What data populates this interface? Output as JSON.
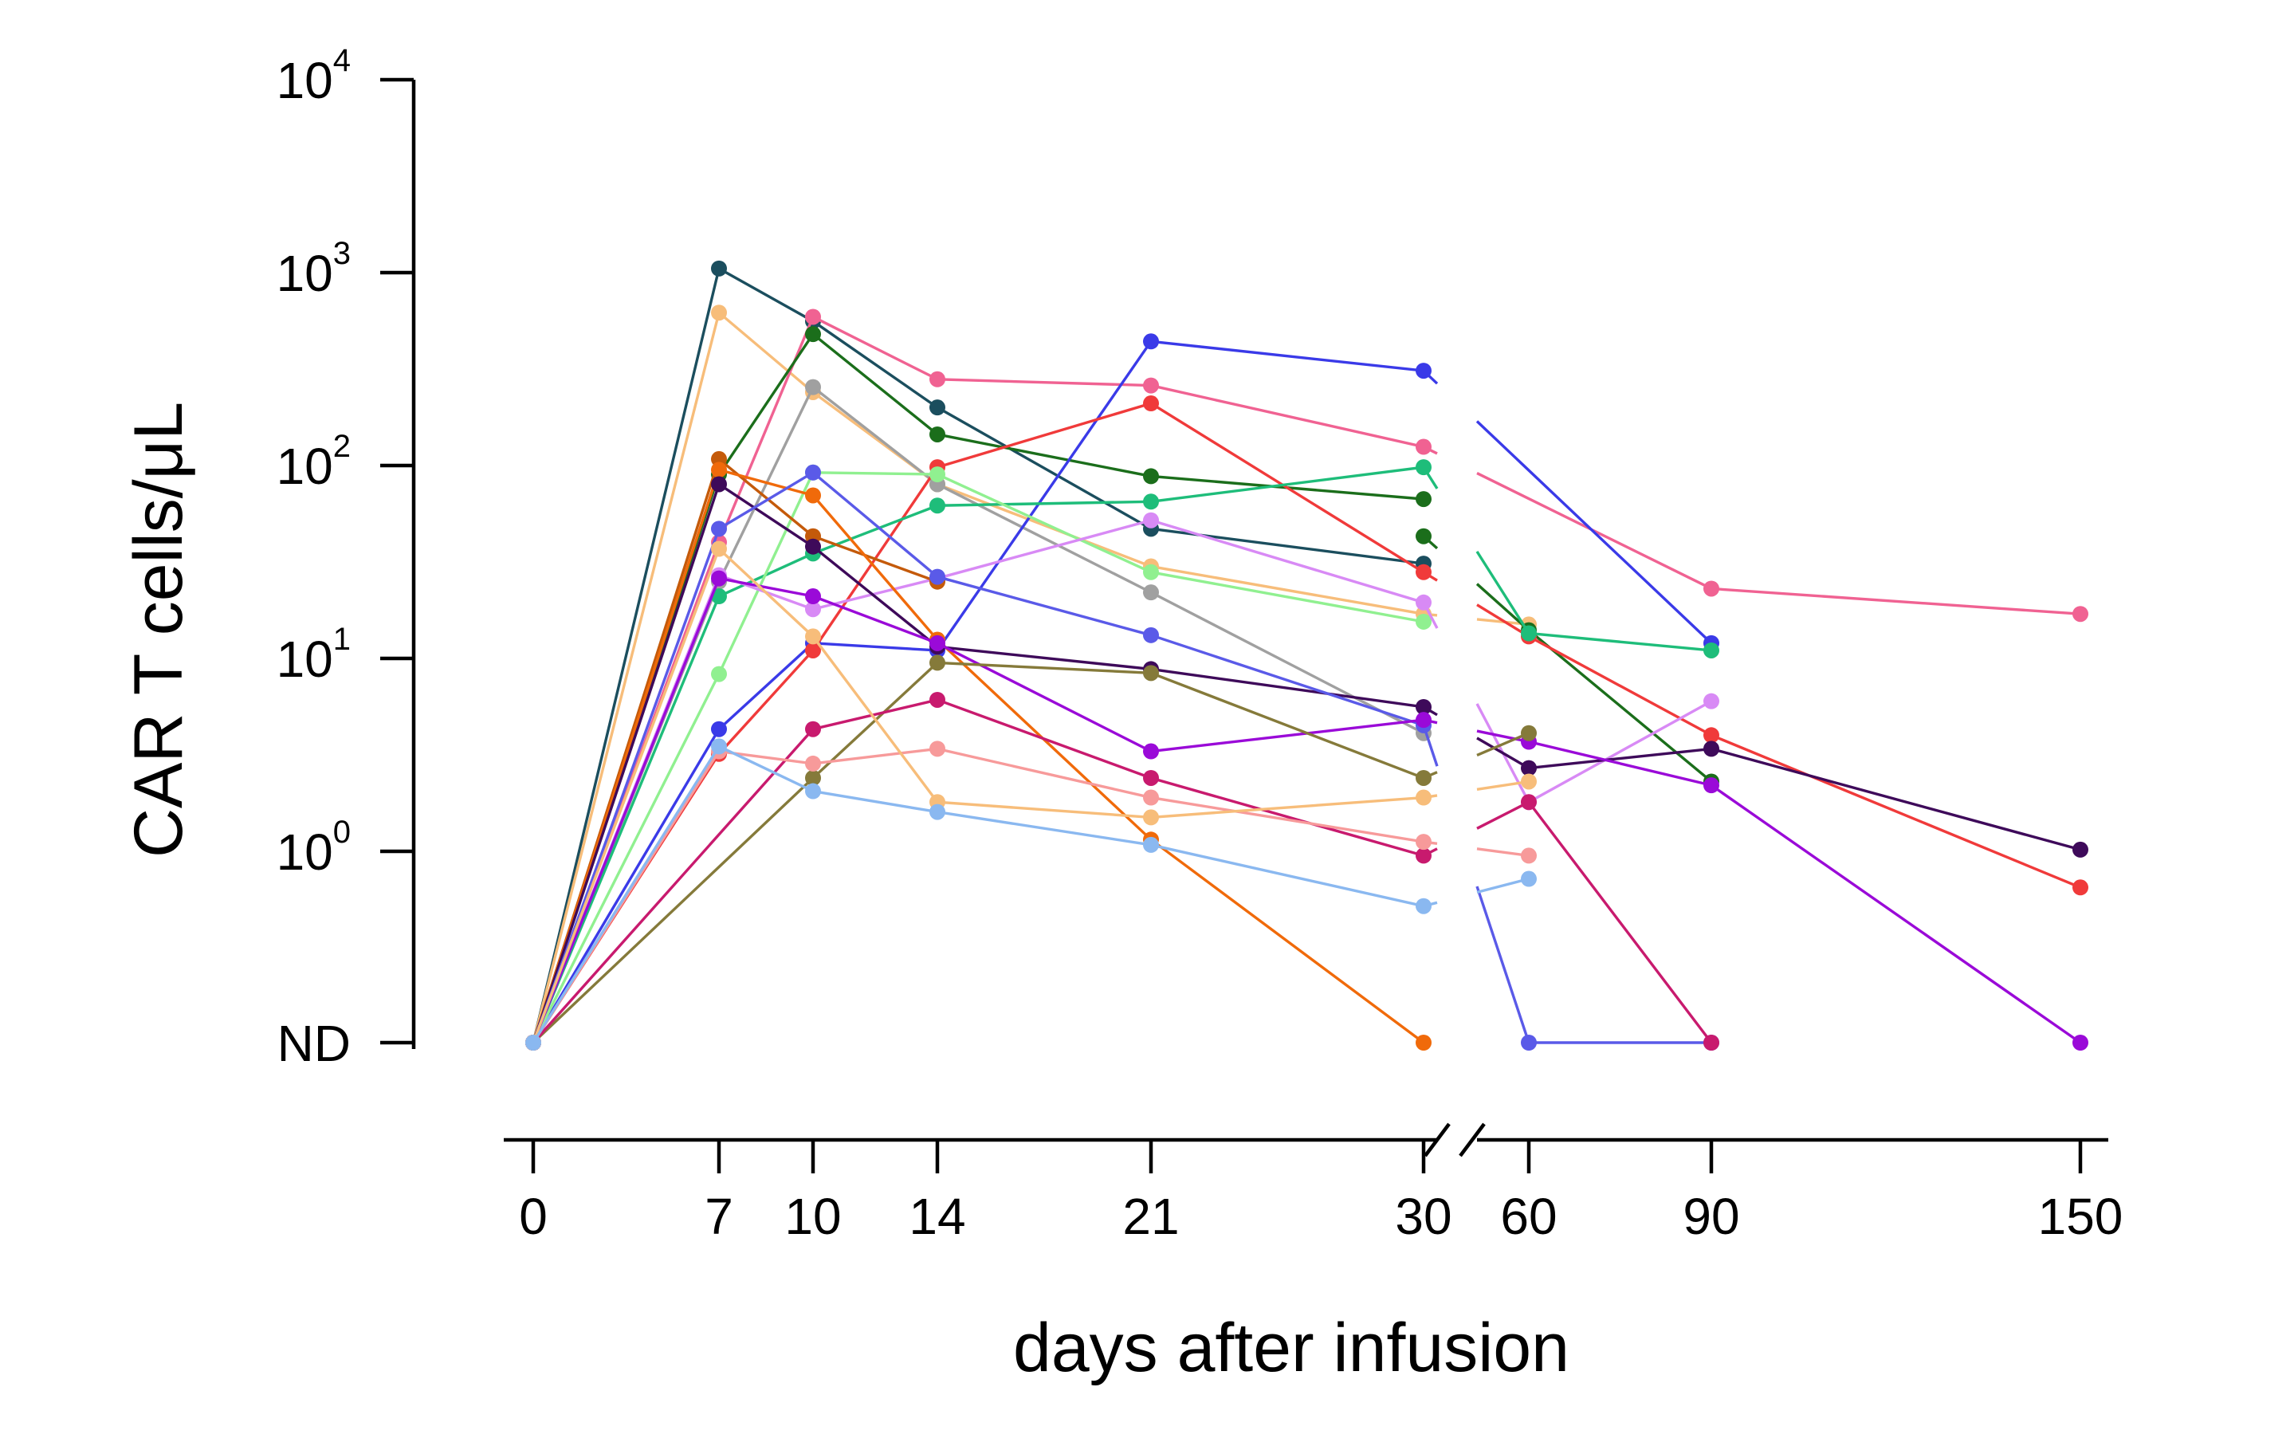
{
  "chart_data": {
    "type": "line",
    "title": "",
    "xlabel": "days after infusion",
    "ylabel": "CAR T cells/μL",
    "y_scale": "log",
    "y_ticks": [
      {
        "value": 10000,
        "base": "10",
        "exp": "4"
      },
      {
        "value": 1000,
        "base": "10",
        "exp": "3"
      },
      {
        "value": 100,
        "base": "10",
        "exp": "2"
      },
      {
        "value": 10,
        "base": "10",
        "exp": "1"
      },
      {
        "value": 1,
        "base": "10",
        "exp": "0"
      },
      {
        "value": "ND",
        "base": "ND",
        "exp": ""
      }
    ],
    "x_ticks": [
      "0",
      "7",
      "10",
      "14",
      "21",
      "30",
      "60",
      "90",
      "150"
    ],
    "x_axis_break": "between 30 and 60",
    "not_detected_label": "ND",
    "grid": false,
    "legend": "none",
    "series": [
      {
        "color": "#1b4e5e",
        "points": [
          [
            0,
            "ND"
          ],
          [
            7,
            1050
          ],
          [
            10,
            560
          ],
          [
            14,
            200
          ],
          [
            21,
            47
          ],
          [
            30,
            31
          ]
        ]
      },
      {
        "color": "#f7bd7a",
        "points": [
          [
            0,
            "ND"
          ],
          [
            7,
            620
          ],
          [
            10,
            240
          ],
          [
            14,
            80
          ],
          [
            21,
            30
          ],
          [
            30,
            17
          ],
          [
            60,
            15
          ]
        ]
      },
      {
        "color": "#f06292",
        "points": [
          [
            0,
            "ND"
          ],
          [
            7,
            40
          ],
          [
            10,
            590
          ],
          [
            14,
            280
          ],
          [
            21,
            260
          ],
          [
            30,
            125
          ],
          [
            90,
            23
          ],
          [
            150,
            17
          ]
        ]
      },
      {
        "color": "#1b6e1b",
        "points": [
          [
            0,
            "ND"
          ],
          [
            7,
            90
          ],
          [
            10,
            480
          ],
          [
            14,
            145
          ],
          [
            21,
            88
          ],
          [
            30,
            67
          ]
        ]
      },
      {
        "color": "#1b6e1b",
        "points": [
          [
            30,
            43
          ],
          [
            60,
            14
          ],
          [
            90,
            2.3
          ]
        ]
      },
      {
        "color": "#a0a0a0",
        "points": [
          [
            0,
            "ND"
          ],
          [
            7,
            25
          ],
          [
            10,
            255
          ],
          [
            14,
            80
          ],
          [
            21,
            22
          ],
          [
            30,
            4.1
          ]
        ]
      },
      {
        "color": "#3a3ae8",
        "points": [
          [
            0,
            "ND"
          ],
          [
            7,
            4.3
          ],
          [
            10,
            12
          ],
          [
            14,
            11
          ],
          [
            21,
            440
          ],
          [
            30,
            310
          ],
          [
            90,
            12
          ]
        ]
      },
      {
        "color": "#f03a3a",
        "points": [
          [
            0,
            "ND"
          ],
          [
            7,
            3.2
          ],
          [
            10,
            11
          ],
          [
            14,
            98
          ],
          [
            21,
            210
          ],
          [
            30,
            28
          ],
          [
            60,
            13
          ],
          [
            90,
            4
          ],
          [
            150,
            0.65
          ]
        ]
      },
      {
        "color": "#1ebd7a",
        "points": [
          [
            0,
            "ND"
          ],
          [
            7,
            21
          ],
          [
            10,
            35
          ],
          [
            14,
            62
          ],
          [
            21,
            65
          ],
          [
            30,
            98
          ],
          [
            60,
            13.5
          ],
          [
            90,
            11
          ]
        ]
      },
      {
        "color": "#90f090",
        "points": [
          [
            0,
            "ND"
          ],
          [
            7,
            8.3
          ],
          [
            10,
            92
          ],
          [
            14,
            90
          ],
          [
            21,
            28
          ],
          [
            30,
            15.5
          ]
        ]
      },
      {
        "color": "#d88af5",
        "points": [
          [
            0,
            "ND"
          ],
          [
            7,
            27
          ],
          [
            10,
            18
          ],
          [
            14,
            26
          ],
          [
            21,
            52
          ],
          [
            30,
            19.5
          ],
          [
            60,
            1.8
          ],
          [
            90,
            6
          ]
        ]
      },
      {
        "color": "#c45a0a",
        "points": [
          [
            0,
            "ND"
          ],
          [
            7,
            108
          ],
          [
            10,
            43
          ],
          [
            14,
            25
          ]
        ]
      },
      {
        "color": "#f06a0a",
        "points": [
          [
            0,
            "ND"
          ],
          [
            7,
            95
          ],
          [
            10,
            70
          ],
          [
            14,
            12.5
          ],
          [
            21,
            1.15
          ],
          [
            30,
            "ND"
          ]
        ]
      },
      {
        "color": "#3e0a5a",
        "points": [
          [
            0,
            "ND"
          ],
          [
            7,
            80
          ],
          [
            10,
            38
          ],
          [
            14,
            11.5
          ],
          [
            21,
            8.8
          ],
          [
            30,
            5.6
          ],
          [
            60,
            2.7
          ],
          [
            90,
            3.4
          ],
          [
            150,
            1.02
          ]
        ]
      },
      {
        "color": "#5a5ae8",
        "points": [
          [
            0,
            "ND"
          ],
          [
            7,
            47
          ],
          [
            10,
            92
          ],
          [
            14,
            26.5
          ],
          [
            21,
            13.2
          ],
          [
            30,
            4.5
          ],
          [
            60,
            "ND"
          ],
          [
            90,
            "ND"
          ]
        ]
      },
      {
        "color": "#9a0ad8",
        "points": [
          [
            0,
            "ND"
          ],
          [
            7,
            26
          ],
          [
            10,
            21
          ],
          [
            14,
            12
          ],
          [
            21,
            3.3
          ],
          [
            30,
            4.8
          ],
          [
            60,
            3.7
          ],
          [
            90,
            2.2
          ],
          [
            150,
            "ND"
          ]
        ]
      },
      {
        "color": "#857a3a",
        "points": [
          [
            0,
            "ND"
          ],
          [
            10,
            2.4
          ],
          [
            14,
            9.5
          ],
          [
            21,
            8.4
          ],
          [
            30,
            2.4
          ],
          [
            60,
            4.1
          ]
        ]
      },
      {
        "color": "#c81a6e",
        "points": [
          [
            0,
            "ND"
          ],
          [
            10,
            4.3
          ],
          [
            14,
            6.1
          ],
          [
            21,
            2.4
          ],
          [
            30,
            0.95
          ],
          [
            60,
            1.8
          ],
          [
            90,
            "ND"
          ]
        ]
      },
      {
        "color": "#f79a9a",
        "points": [
          [
            0,
            "ND"
          ],
          [
            7,
            3.3
          ],
          [
            10,
            2.85
          ],
          [
            14,
            3.4
          ],
          [
            21,
            1.9
          ],
          [
            30,
            1.12
          ],
          [
            60,
            0.95
          ]
        ]
      },
      {
        "color": "#f7bd7a",
        "points": [
          [
            0,
            "ND"
          ],
          [
            7,
            37
          ],
          [
            10,
            13
          ],
          [
            14,
            1.8
          ],
          [
            21,
            1.5
          ],
          [
            30,
            1.9
          ],
          [
            60,
            2.3
          ]
        ]
      },
      {
        "color": "#8ab8f0",
        "points": [
          [
            0,
            "ND"
          ],
          [
            7,
            3.5
          ],
          [
            10,
            2.05
          ],
          [
            14,
            1.6
          ],
          [
            21,
            1.08
          ],
          [
            30,
            0.52
          ],
          [
            60,
            0.72
          ]
        ]
      }
    ]
  }
}
